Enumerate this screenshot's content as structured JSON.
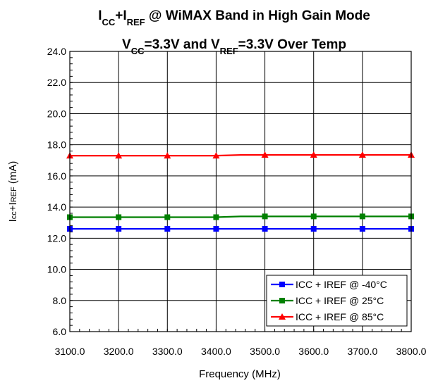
{
  "chart_data": {
    "type": "line",
    "title": {
      "line1": [
        {
          "text": "I",
          "sub": false
        },
        {
          "text": "CC",
          "sub": true
        },
        {
          "text": "+I",
          "sub": false
        },
        {
          "text": "REF",
          "sub": true
        },
        {
          "text": " @ WiMAX Band in High Gain Mode",
          "sub": false
        }
      ],
      "line2": [
        {
          "text": "V",
          "sub": false
        },
        {
          "text": "CC",
          "sub": true
        },
        {
          "text": "=3.3V and V",
          "sub": false
        },
        {
          "text": "REF",
          "sub": true
        },
        {
          "text": "=3.3V Over Temp",
          "sub": false
        }
      ]
    },
    "xlabel": "Frequency (MHz)",
    "ylabel": "Icc+IREF (mA)",
    "xlim": [
      3100,
      3800
    ],
    "ylim": [
      6.0,
      24.0
    ],
    "xticks": [
      "3100.0",
      "3200.0",
      "3300.0",
      "3400.0",
      "3500.0",
      "3600.0",
      "3700.0",
      "3800.0"
    ],
    "yticks": [
      "6.0",
      "8.0",
      "10.0",
      "12.0",
      "14.0",
      "16.0",
      "18.0",
      "20.0",
      "22.0",
      "24.0"
    ],
    "grid": true,
    "legend_position": "bottom-right",
    "series": [
      {
        "name": "ICC + IREF @ -40°C",
        "color": "#0000ff",
        "marker": "square",
        "x": [
          3100,
          3200,
          3300,
          3400,
          3450,
          3500,
          3600,
          3700,
          3800
        ],
        "y": [
          12.6,
          12.6,
          12.6,
          12.6,
          12.6,
          12.6,
          12.6,
          12.6,
          12.6
        ],
        "markers_at": [
          3100,
          3200,
          3300,
          3400,
          3500,
          3600,
          3700,
          3800
        ]
      },
      {
        "name": "ICC + IREF @ 25°C",
        "color": "#008000",
        "marker": "square",
        "x": [
          3100,
          3200,
          3300,
          3400,
          3450,
          3500,
          3600,
          3700,
          3800
        ],
        "y": [
          13.35,
          13.35,
          13.35,
          13.35,
          13.4,
          13.4,
          13.4,
          13.4,
          13.4
        ],
        "markers_at": [
          3100,
          3200,
          3300,
          3400,
          3500,
          3600,
          3700,
          3800
        ]
      },
      {
        "name": "ICC + IREF @ 85°C",
        "color": "#ff0000",
        "marker": "triangle",
        "x": [
          3100,
          3200,
          3300,
          3400,
          3450,
          3500,
          3600,
          3700,
          3800
        ],
        "y": [
          17.3,
          17.3,
          17.3,
          17.3,
          17.35,
          17.35,
          17.35,
          17.35,
          17.35
        ],
        "markers_at": [
          3100,
          3200,
          3300,
          3400,
          3500,
          3600,
          3700,
          3800
        ]
      }
    ]
  }
}
